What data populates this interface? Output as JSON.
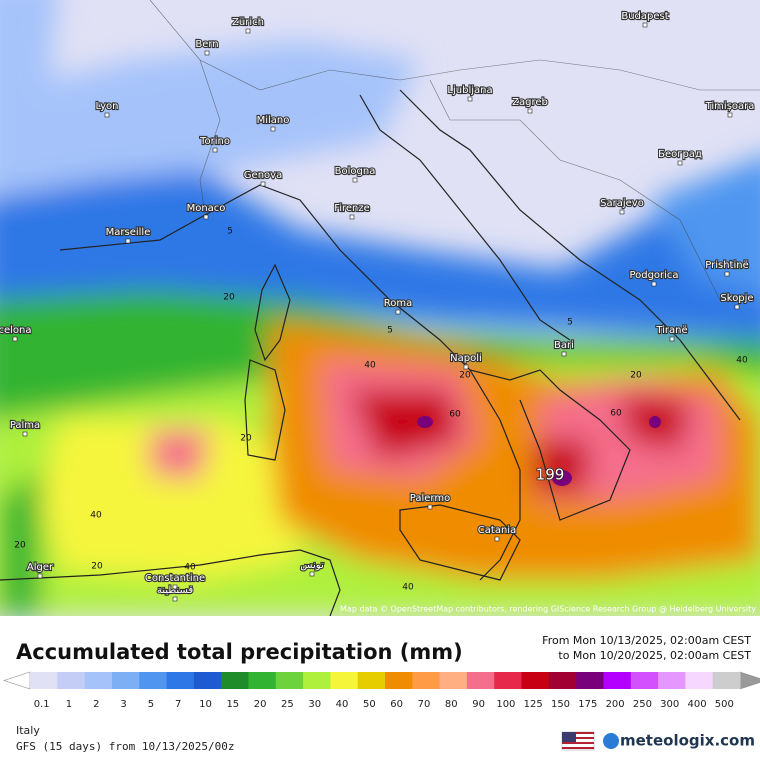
{
  "map": {
    "cities": [
      "Zürich",
      "Bern",
      "Budapest",
      "Lyon",
      "Milano",
      "Ljubljana",
      "Zagreb",
      "Timișoara",
      "Torino",
      "Београд",
      "Genova",
      "Bologna",
      "Monaco",
      "Firenze",
      "Sarajevo",
      "Marseille",
      "Podgorica",
      "Prishtinë",
      "Roma",
      "Skopje",
      "celona",
      "Napoli",
      "Bari",
      "Tiranë",
      "Palma",
      "Palermo",
      "Catania",
      "Alger",
      "Constantine",
      "قسنطينة",
      "تونس"
    ],
    "contour_labels": [
      5,
      5,
      5,
      20,
      20,
      20,
      20,
      20,
      20,
      40,
      40,
      40,
      40,
      40,
      60,
      60,
      199
    ],
    "attribution": "Map data © OpenStreetMap contributors, rendering GIScience Research Group @ Heidelberg University"
  },
  "header": {
    "title": "Accumulated total precipitation (mm)",
    "from": "From Mon 10/13/2025, 02:00am CEST",
    "to": "to Mon 10/20/2025, 02:00am CEST"
  },
  "legend": {
    "values": [
      0.1,
      1,
      2,
      3,
      5,
      7,
      10,
      15,
      20,
      25,
      30,
      40,
      50,
      60,
      70,
      80,
      90,
      100,
      125,
      150,
      175,
      200,
      250,
      300,
      400,
      500
    ],
    "colors": [
      "#e1e1f5",
      "#c3cdf5",
      "#a5c3fa",
      "#7daff5",
      "#5096f0",
      "#2d78e6",
      "#1e5ad2",
      "#1e8c28",
      "#32b432",
      "#6ed23c",
      "#aff03c",
      "#f5f53c",
      "#e6cd00",
      "#f08c00",
      "#ff9b46",
      "#ffaf82",
      "#f56e8c",
      "#e6284b",
      "#c80014",
      "#a00032",
      "#780078",
      "#b400ff",
      "#d250ff",
      "#e696ff",
      "#f5d7ff",
      "#cdcdcd"
    ]
  },
  "footer": {
    "region": "Italy",
    "model": "GFS (15 days) from 10/13/2025/00z",
    "brand": "meteologix.com"
  }
}
